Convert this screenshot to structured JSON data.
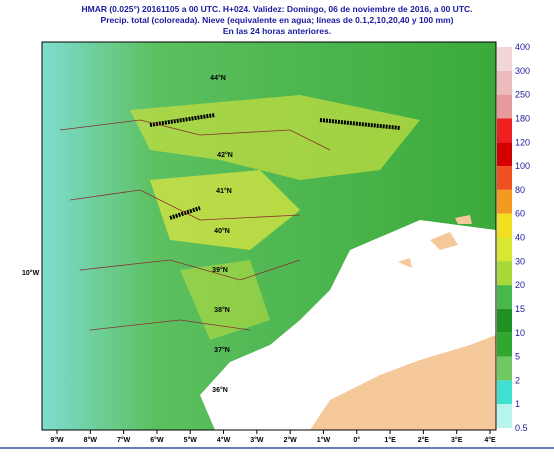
{
  "header": {
    "lines": [
      "HMAR (0.025°) 20161105 a 00 UTC.  H+024. Validez: Domingo, 06 de noviembre de 2016,  a  00 UTC.",
      "Precip. total (coloreada). Nieve (equivalente en agua; líneas de 0.1,2,10,20,40 y 100 mm)",
      "En las 24 horas anteriores."
    ]
  },
  "colorbar": {
    "levels": [
      400,
      300,
      250,
      180,
      120,
      100,
      80,
      60,
      40,
      30,
      20,
      15,
      10,
      5,
      2,
      1,
      0.5
    ],
    "colors": [
      "#f2d6d6",
      "#ebbcbc",
      "#e69a9a",
      "#ee2020",
      "#d40000",
      "#f05020",
      "#f59a20",
      "#f2e020",
      "#d8e830",
      "#a8d838",
      "#48b848",
      "#209020",
      "#30a830",
      "#70c860",
      "#40e0d0",
      "#b8f4ee"
    ]
  },
  "map": {
    "lon_labels": [
      "9°W",
      "8°W",
      "7°W",
      "6°W",
      "5°W",
      "4°W",
      "3°W",
      "2°W",
      "1°W",
      "0°",
      "1°E",
      "2°E",
      "3°E",
      "4°E"
    ],
    "lat_labels": [
      "44°N",
      "42°N",
      "41°N",
      "40°N",
      "39°N",
      "38°N",
      "37°N",
      "36°N"
    ],
    "west_label": "10°W"
  }
}
